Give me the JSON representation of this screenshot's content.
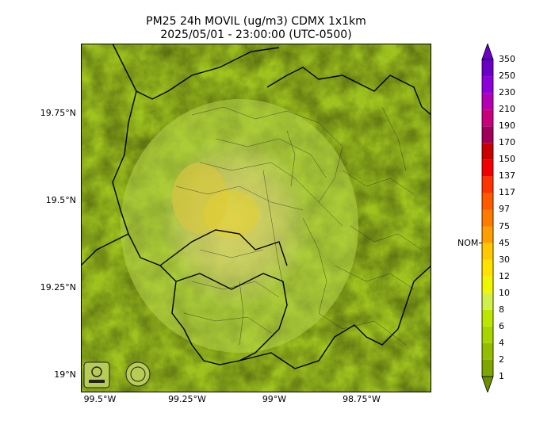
{
  "title": {
    "line1": "PM25 24h MOVIL (ug/m3) CDMX 1x1km",
    "line2": "2025/05/01 - 23:00:00 (UTC-0500)"
  },
  "lat_ticks": [
    "19.75°N",
    "19.5°N",
    "19.25°N",
    "19°N"
  ],
  "lon_ticks": [
    "99.5°W",
    "99.25°W",
    "99°W",
    "98.75°W"
  ],
  "colorbar": {
    "labels": [
      "1",
      "2",
      "4",
      "6",
      "8",
      "10",
      "12",
      "30",
      "45",
      "75",
      "97",
      "117",
      "137",
      "150",
      "170",
      "190",
      "210",
      "230",
      "250",
      "350"
    ],
    "colors": [
      "#6b8f00",
      "#7fa600",
      "#93bd00",
      "#a8d400",
      "#bce600",
      "#d3f04a",
      "#f0f500",
      "#ffe200",
      "#ffc800",
      "#ff9e00",
      "#ff7a00",
      "#ff5a00",
      "#ff3300",
      "#f00000",
      "#c80000",
      "#a0005a",
      "#c8007a",
      "#b400b4",
      "#8c00dc",
      "#6a00c8"
    ],
    "nom_label": "NOM",
    "nom_value": 45
  },
  "logos": [
    "sedema-logo",
    "cdmx-logo"
  ]
}
